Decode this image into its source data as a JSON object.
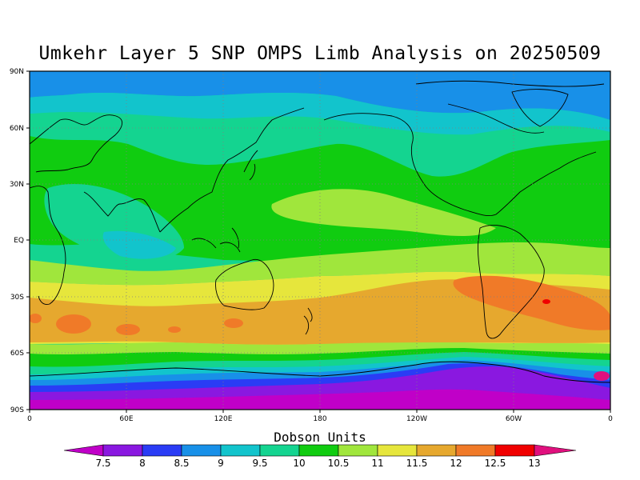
{
  "title": "Umkehr Layer 5 SNP OMPS Limb Analysis on 20250509",
  "lat_labels": [
    "90N",
    "60N",
    "30N",
    "EQ",
    "30S",
    "60S",
    "90S"
  ],
  "lon_labels": [
    "0",
    "60E",
    "120E",
    "180",
    "120W",
    "60W",
    "0"
  ],
  "colorbar": {
    "title": "Dobson Units",
    "ticks": [
      "7.5",
      "8",
      "8.5",
      "9",
      "9.5",
      "10",
      "10.5",
      "11",
      "11.5",
      "12",
      "12.5",
      "13"
    ],
    "colors": [
      "#c000c8",
      "#8a18e0",
      "#2a3cf5",
      "#1890e8",
      "#12c4cc",
      "#14d490",
      "#10cc10",
      "#a0e63c",
      "#e6e63c",
      "#e6a82e",
      "#f07a28",
      "#f00000",
      "#e0107e"
    ]
  }
}
